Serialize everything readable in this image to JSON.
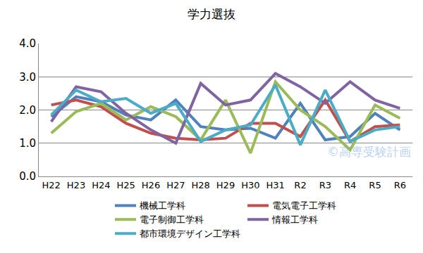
{
  "chart_data": {
    "type": "line",
    "title": "学力選抜",
    "categories": [
      "H22",
      "H23",
      "H24",
      "H25",
      "H26",
      "H27",
      "H28",
      "H29",
      "H30",
      "H31",
      "R2",
      "R3",
      "R4",
      "R5",
      "R6"
    ],
    "series": [
      {
        "name": "機械工学科",
        "color": "#4F81BD",
        "values": [
          1.8,
          2.4,
          2.25,
          1.85,
          1.7,
          2.3,
          1.5,
          1.4,
          1.45,
          1.15,
          2.2,
          1.1,
          1.2,
          1.9,
          1.4
        ]
      },
      {
        "name": "電気電子工学科",
        "color": "#C0504D",
        "values": [
          2.15,
          2.3,
          2.1,
          1.6,
          1.3,
          1.15,
          1.1,
          1.15,
          1.6,
          1.6,
          1.2,
          2.3,
          1.05,
          1.5,
          1.55
        ]
      },
      {
        "name": "電子制御工学科",
        "color": "#9BBB59",
        "values": [
          1.3,
          1.95,
          2.2,
          1.7,
          2.1,
          1.8,
          1.1,
          2.3,
          0.7,
          2.85,
          2.0,
          1.5,
          0.8,
          2.15,
          1.75
        ]
      },
      {
        "name": "情報工学科",
        "color": "#8064A2",
        "values": [
          1.65,
          2.7,
          2.55,
          1.9,
          1.4,
          1.0,
          2.8,
          2.15,
          2.3,
          3.1,
          2.7,
          2.2,
          2.85,
          2.3,
          2.05
        ]
      },
      {
        "name": "都市環境デザイン工学科",
        "color": "#4BACC6",
        "values": [
          1.85,
          2.6,
          2.25,
          2.35,
          1.9,
          2.2,
          1.05,
          1.4,
          1.55,
          2.75,
          0.95,
          2.6,
          1.05,
          1.4,
          1.5
        ]
      }
    ],
    "ylim": [
      0,
      4
    ],
    "yticks": [
      {
        "value": 0,
        "label": "0.0"
      },
      {
        "value": 1,
        "label": "1.0"
      },
      {
        "value": 2,
        "label": "2.0"
      },
      {
        "value": 3,
        "label": "3.0"
      },
      {
        "value": 4,
        "label": "4.0"
      }
    ],
    "grid": true,
    "legend": "bottom",
    "annotations": [
      "©高専受験計画"
    ]
  }
}
